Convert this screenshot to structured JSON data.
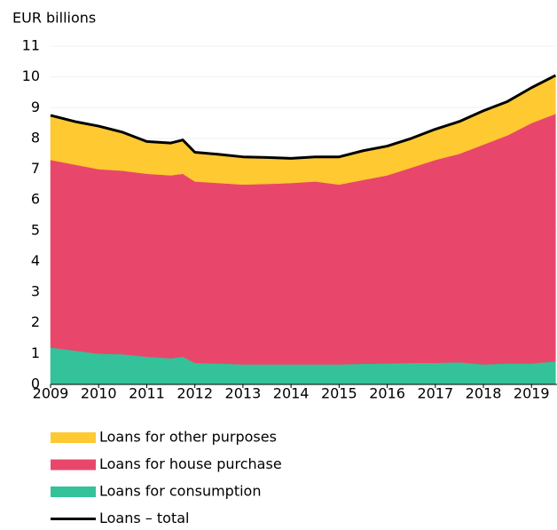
{
  "chart_data": {
    "type": "stacked_area",
    "y_label": "EUR billions",
    "x": [
      2009,
      2009.5,
      2010,
      2010.5,
      2011,
      2011.5,
      2011.75,
      2012,
      2012.5,
      2013,
      2013.5,
      2014,
      2014.5,
      2015,
      2015.5,
      2016,
      2016.5,
      2017,
      2017.5,
      2018,
      2018.5,
      2019,
      2019.5
    ],
    "xlim": [
      2009,
      2019.53
    ],
    "xticks": [
      2009,
      2010,
      2011,
      2012,
      2013,
      2014,
      2015,
      2016,
      2017,
      2018,
      2019
    ],
    "ylim": [
      0,
      11
    ],
    "yticks": [
      0,
      1,
      2,
      3,
      4,
      5,
      6,
      7,
      8,
      9,
      10,
      11
    ],
    "grid": true,
    "legend": "bottom",
    "series": [
      {
        "name": "Loans for other purposes",
        "type": "area",
        "color": "#ffc931",
        "values": [
          1.45,
          1.4,
          1.4,
          1.25,
          1.05,
          1.05,
          1.1,
          0.95,
          0.93,
          0.9,
          0.86,
          0.8,
          0.8,
          0.9,
          0.95,
          0.95,
          0.95,
          1.0,
          1.05,
          1.1,
          1.1,
          1.15,
          1.25
        ]
      },
      {
        "name": "Loans for house purchase",
        "type": "area",
        "color": "#e8476b",
        "values": [
          6.1,
          6.05,
          6.0,
          5.97,
          5.95,
          5.95,
          5.95,
          5.9,
          5.87,
          5.85,
          5.87,
          5.9,
          5.95,
          5.85,
          5.98,
          6.12,
          6.35,
          6.6,
          6.78,
          7.15,
          7.42,
          7.82,
          8.05
        ]
      },
      {
        "name": "Loans for consumption",
        "type": "area",
        "color": "#33c29a",
        "values": [
          1.2,
          1.1,
          1.0,
          0.98,
          0.9,
          0.85,
          0.9,
          0.7,
          0.68,
          0.65,
          0.65,
          0.65,
          0.65,
          0.65,
          0.67,
          0.68,
          0.7,
          0.7,
          0.72,
          0.65,
          0.68,
          0.68,
          0.75
        ]
      },
      {
        "name": "Loans – total",
        "type": "line",
        "color": "#000000",
        "values": [
          8.75,
          8.55,
          8.4,
          8.2,
          7.9,
          7.85,
          7.95,
          7.55,
          7.48,
          7.4,
          7.38,
          7.35,
          7.4,
          7.4,
          7.6,
          7.75,
          8.0,
          8.3,
          8.55,
          8.9,
          9.2,
          9.65,
          10.05
        ]
      }
    ]
  }
}
